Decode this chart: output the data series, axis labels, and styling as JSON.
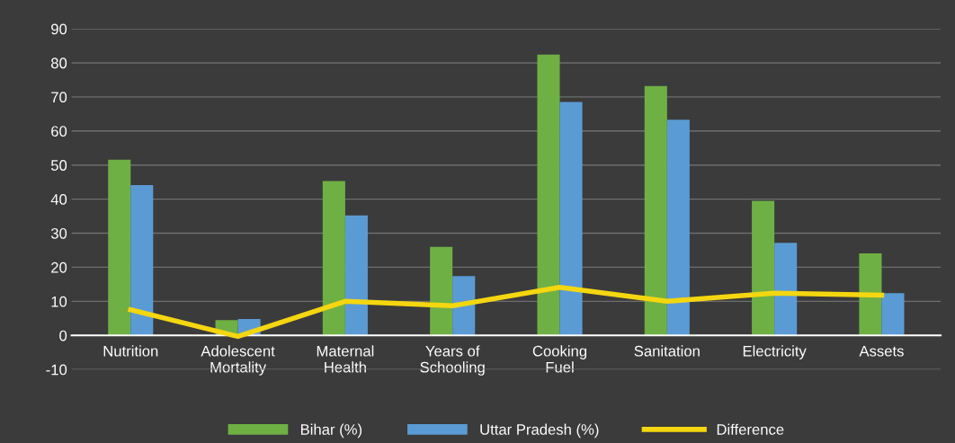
{
  "chart_data": {
    "type": "bar",
    "categories": [
      "Nutrition",
      "Adolescent\nMortality",
      "Maternal\nHealth",
      "Years of\nSchooling",
      "Cooking\nFuel",
      "Sanitation",
      "Electricity",
      "Assets"
    ],
    "series": [
      {
        "name": "Bihar (%)",
        "color": "#6fb044",
        "values": [
          51.6,
          4.5,
          45.3,
          26,
          82.4,
          73.2,
          39.5,
          24.1
        ]
      },
      {
        "name": "Uttar Pradesh (%)",
        "color": "#5b9bd5",
        "values": [
          44.1,
          4.8,
          35.2,
          17.4,
          68.5,
          63.3,
          27.2,
          12.4
        ]
      },
      {
        "name": "Difference",
        "type": "line",
        "color": "#f5d60f",
        "values": [
          7.5,
          -0.3,
          10,
          8.7,
          14.1,
          10,
          12.4,
          11.8
        ]
      }
    ],
    "ylim": [
      -10,
      90
    ],
    "yticks": [
      -10,
      0,
      10,
      20,
      30,
      40,
      50,
      60,
      70,
      80,
      90
    ],
    "grid": "y",
    "legend": "bottom",
    "marker": "none",
    "line_style": "solid"
  }
}
